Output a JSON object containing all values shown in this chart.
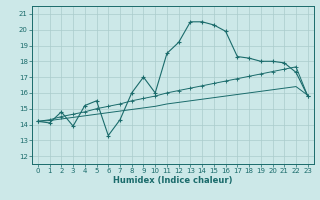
{
  "xlabel": "Humidex (Indice chaleur)",
  "bg_color": "#cce8e8",
  "grid_color": "#aacccc",
  "line_color": "#1a6b6b",
  "xlim": [
    -0.5,
    23.5
  ],
  "ylim": [
    11.5,
    21.5
  ],
  "xticks": [
    0,
    1,
    2,
    3,
    4,
    5,
    6,
    7,
    8,
    9,
    10,
    11,
    12,
    13,
    14,
    15,
    16,
    17,
    18,
    19,
    20,
    21,
    22,
    23
  ],
  "yticks": [
    12,
    13,
    14,
    15,
    16,
    17,
    18,
    19,
    20,
    21
  ],
  "curve1_x": [
    0,
    1,
    2,
    3,
    4,
    5,
    6,
    7,
    8,
    9,
    10,
    11,
    12,
    13,
    14,
    15,
    16,
    17,
    18,
    19,
    20,
    21,
    22,
    23
  ],
  "curve1_y": [
    14.2,
    14.1,
    14.8,
    13.9,
    15.2,
    15.5,
    13.3,
    14.3,
    16.0,
    17.0,
    16.0,
    18.5,
    19.2,
    20.5,
    20.5,
    20.3,
    19.9,
    18.3,
    18.2,
    18.0,
    18.0,
    17.9,
    17.3,
    15.8
  ],
  "curve2_x": [
    0,
    1,
    2,
    3,
    4,
    5,
    6,
    7,
    8,
    9,
    10,
    11,
    12,
    13,
    14,
    15,
    16,
    17,
    18,
    19,
    20,
    21,
    22,
    23
  ],
  "curve2_y": [
    14.2,
    14.3,
    14.5,
    14.65,
    14.8,
    15.0,
    15.15,
    15.3,
    15.5,
    15.65,
    15.8,
    16.0,
    16.15,
    16.3,
    16.45,
    16.6,
    16.75,
    16.9,
    17.05,
    17.2,
    17.35,
    17.5,
    17.65,
    15.8
  ],
  "curve3_x": [
    0,
    1,
    2,
    3,
    4,
    5,
    6,
    7,
    8,
    9,
    10,
    11,
    12,
    13,
    14,
    15,
    16,
    17,
    18,
    19,
    20,
    21,
    22,
    23
  ],
  "curve3_y": [
    14.2,
    14.25,
    14.35,
    14.45,
    14.55,
    14.65,
    14.75,
    14.85,
    14.95,
    15.05,
    15.15,
    15.3,
    15.4,
    15.5,
    15.6,
    15.7,
    15.8,
    15.9,
    16.0,
    16.1,
    16.2,
    16.3,
    16.4,
    15.85
  ]
}
